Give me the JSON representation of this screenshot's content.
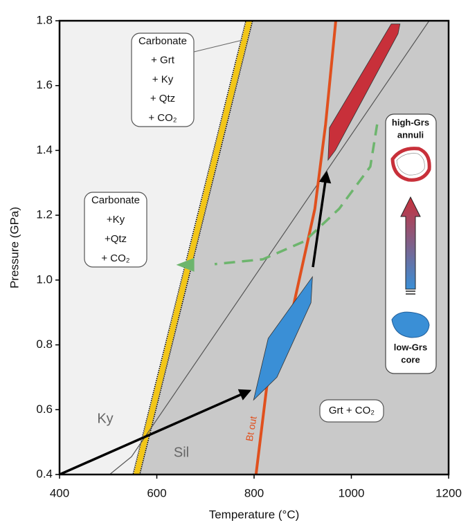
{
  "chart_data": {
    "type": "line",
    "xlabel": "Temperature (°C)",
    "ylabel": "Pressure (GPa)",
    "xlim": [
      400,
      1200
    ],
    "ylim": [
      0.4,
      1.8
    ],
    "xticks": [
      400,
      600,
      800,
      1000,
      1200
    ],
    "yticks": [
      0.4,
      0.6,
      0.8,
      {
        "value": 1,
        "label": "1.0"
      },
      1.2,
      1.4,
      1.6,
      1.8
    ],
    "background": "#f1f1f1",
    "field_color": "#c9c9c9",
    "series": [
      {
        "kind": "band",
        "color": "#f2c618",
        "x": [
          558,
          790
        ],
        "values": [
          0.4,
          1.8
        ]
      },
      {
        "kind": "line",
        "color": "#555555",
        "x": [
          503,
          548,
          1160
        ],
        "values": [
          0.4,
          0.455,
          1.8
        ]
      },
      {
        "kind": "line",
        "color": "#e0501e",
        "x": [
          804,
          826,
          875,
          925,
          947,
          968
        ],
        "values": [
          0.4,
          0.67,
          0.88,
          1.22,
          1.48,
          1.8
        ]
      },
      {
        "kind": "dashed-arrow",
        "color": "#6db56d",
        "x": [
          1053,
          1039,
          975,
          904,
          818,
          719,
          640
        ],
        "values": [
          1.48,
          1.35,
          1.22,
          1.12,
          1.064,
          1.049,
          1.047
        ]
      },
      {
        "kind": "polygon",
        "color": "#3a8fd6",
        "x": [
          799,
          829,
          920,
          917,
          847
        ],
        "values": [
          0.63,
          0.82,
          1.01,
          0.93,
          0.7
        ]
      },
      {
        "kind": "polygon",
        "color": "#c8303a",
        "x": [
          955,
          1082,
          1100,
          1096,
          967,
          952
        ],
        "values": [
          1.47,
          1.79,
          1.79,
          1.76,
          1.4,
          1.37
        ]
      },
      {
        "kind": "arrow",
        "color": "#000000",
        "x": [
          400,
          790
        ],
        "values": [
          0.4,
          0.658
        ]
      },
      {
        "kind": "arrow",
        "color": "#000000",
        "x": [
          921,
          949
        ],
        "values": [
          1.04,
          1.33
        ]
      }
    ],
    "labels": [
      "Ky",
      "Sil",
      "Bt out"
    ],
    "boxes": [
      [
        "Carbonate",
        "+ Grt",
        "+ Ky",
        "+ Qtz",
        "+ CO₂"
      ],
      [
        "Carbonate",
        "+Ky",
        "+Qtz",
        "+ CO₂"
      ],
      [
        "Grt + CO₂"
      ]
    ],
    "inset": {
      "top": [
        "high-Grs",
        "annuli"
      ],
      "bottom": [
        "low-Grs",
        "core"
      ]
    }
  }
}
